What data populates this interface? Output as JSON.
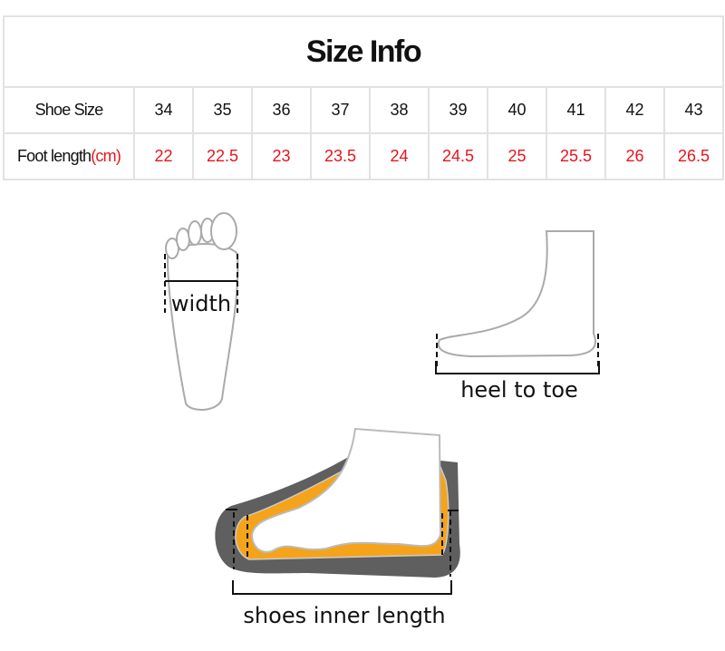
{
  "title": "Size Info",
  "rows": {
    "shoe_size": {
      "label": "Shoe Size",
      "values": [
        "34",
        "35",
        "36",
        "37",
        "38",
        "39",
        "40",
        "41",
        "42",
        "43"
      ]
    },
    "foot_length": {
      "label": "Foot length",
      "unit": "(cm)",
      "values": [
        "22",
        "22.5",
        "23",
        "23.5",
        "24",
        "24.5",
        "25",
        "25.5",
        "26",
        "26.5"
      ]
    }
  },
  "diagrams": {
    "width_label": "width",
    "heel_label": "heel to toe",
    "inner_label": "shoes inner length"
  },
  "colors": {
    "accent_red": "#e8141c",
    "sole_gray": "#5f5f5f",
    "insole_orange": "#f5a31a"
  }
}
